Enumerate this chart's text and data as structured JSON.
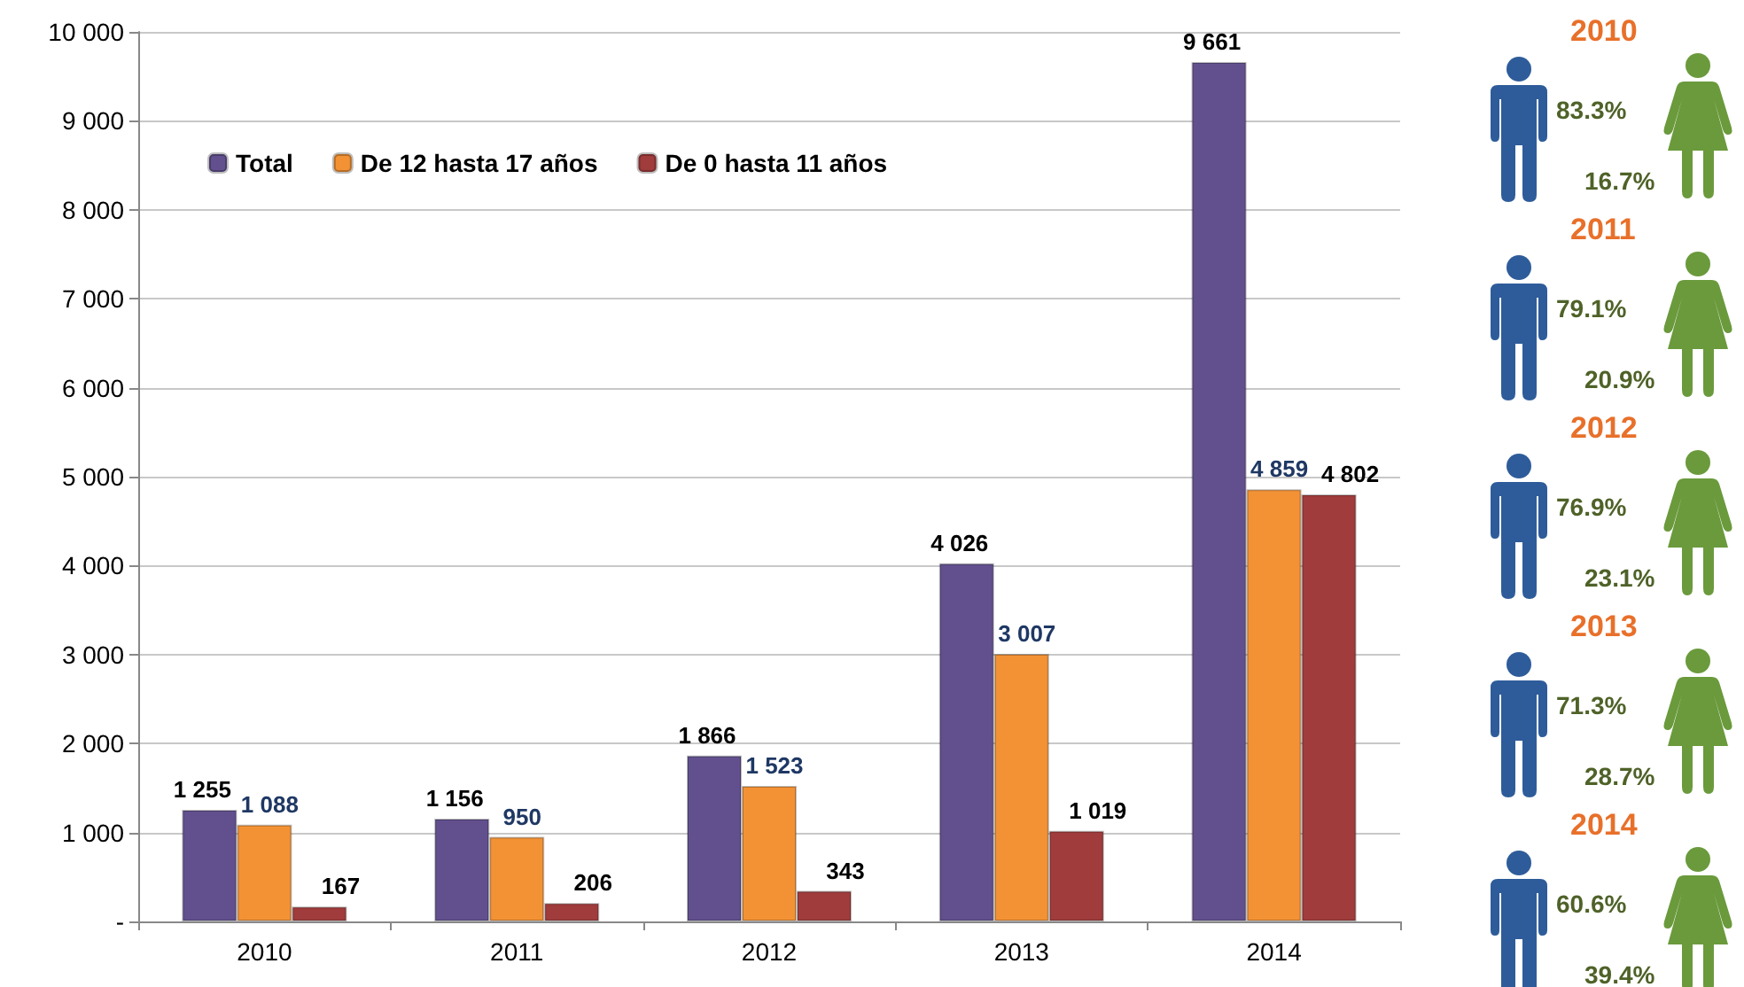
{
  "chart_data": {
    "type": "bar",
    "categories": [
      "2010",
      "2011",
      "2012",
      "2013",
      "2014"
    ],
    "series": [
      {
        "name": "Total",
        "color": "#62508e",
        "values": [
          1255,
          1156,
          1866,
          4026,
          9661
        ],
        "value_labels": [
          "1 255",
          "1 156",
          "1 866",
          "4 026",
          "9 661"
        ]
      },
      {
        "name": "De 12 hasta 17 años",
        "color": "#f39235",
        "values": [
          1088,
          950,
          1523,
          3007,
          4859
        ],
        "value_labels": [
          "1 088",
          "950",
          "1 523",
          "3 007",
          "4 859"
        ]
      },
      {
        "name": "De 0 hasta 11 años",
        "color": "#a03c3c",
        "values": [
          167,
          206,
          343,
          1019,
          4802
        ],
        "value_labels": [
          "167",
          "206",
          "343",
          "1 019",
          "4 802"
        ]
      }
    ],
    "ylim": [
      0,
      10000
    ],
    "yticks": [
      {
        "value": 0,
        "label": "-"
      },
      {
        "value": 1000,
        "label": "1 000"
      },
      {
        "value": 2000,
        "label": "2 000"
      },
      {
        "value": 3000,
        "label": "3 000"
      },
      {
        "value": 4000,
        "label": "4 000"
      },
      {
        "value": 5000,
        "label": "5 000"
      },
      {
        "value": 6000,
        "label": "6 000"
      },
      {
        "value": 7000,
        "label": "7 000"
      },
      {
        "value": 8000,
        "label": "8 000"
      },
      {
        "value": 9000,
        "label": "9 000"
      },
      {
        "value": 10000,
        "label": "10 000"
      }
    ],
    "grid": "y",
    "legend": "top left",
    "annotations": [
      "2010",
      "83.3%",
      "16.7%",
      "2011",
      "79.1%",
      "20.9%",
      "2012",
      "76.9%",
      "23.1%",
      "2013",
      "71.3%",
      "28.7%",
      "2014",
      "60.6%",
      "39.4%"
    ]
  }
}
